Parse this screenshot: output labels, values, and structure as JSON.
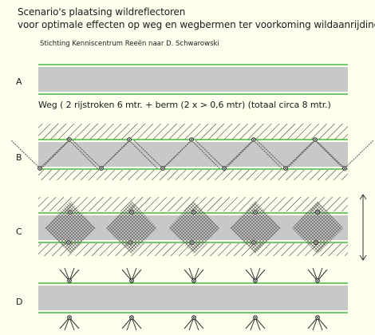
{
  "title": {
    "line1": "Scenario's plaatsing wildreflectoren",
    "line2": "voor optimale effecten op weg  en wegbermen ter voorkoming wildaanrijdingen"
  },
  "subtitle": "Stichting Kenniscentrum Reeën naar D. Schwarowski",
  "road_description": "Weg ( 2 rijstroken 6 mtr. + berm (2 x > 0,6 mtr) (totaal circa 8 mtr.)",
  "scenarios": [
    {
      "label": "A"
    },
    {
      "label": "B"
    },
    {
      "label": "C"
    },
    {
      "label": "D"
    }
  ],
  "colors": {
    "background": "#ffffee",
    "road": "#c8c8c8",
    "verge_line": "#22aa22",
    "hatch": "#333333"
  }
}
